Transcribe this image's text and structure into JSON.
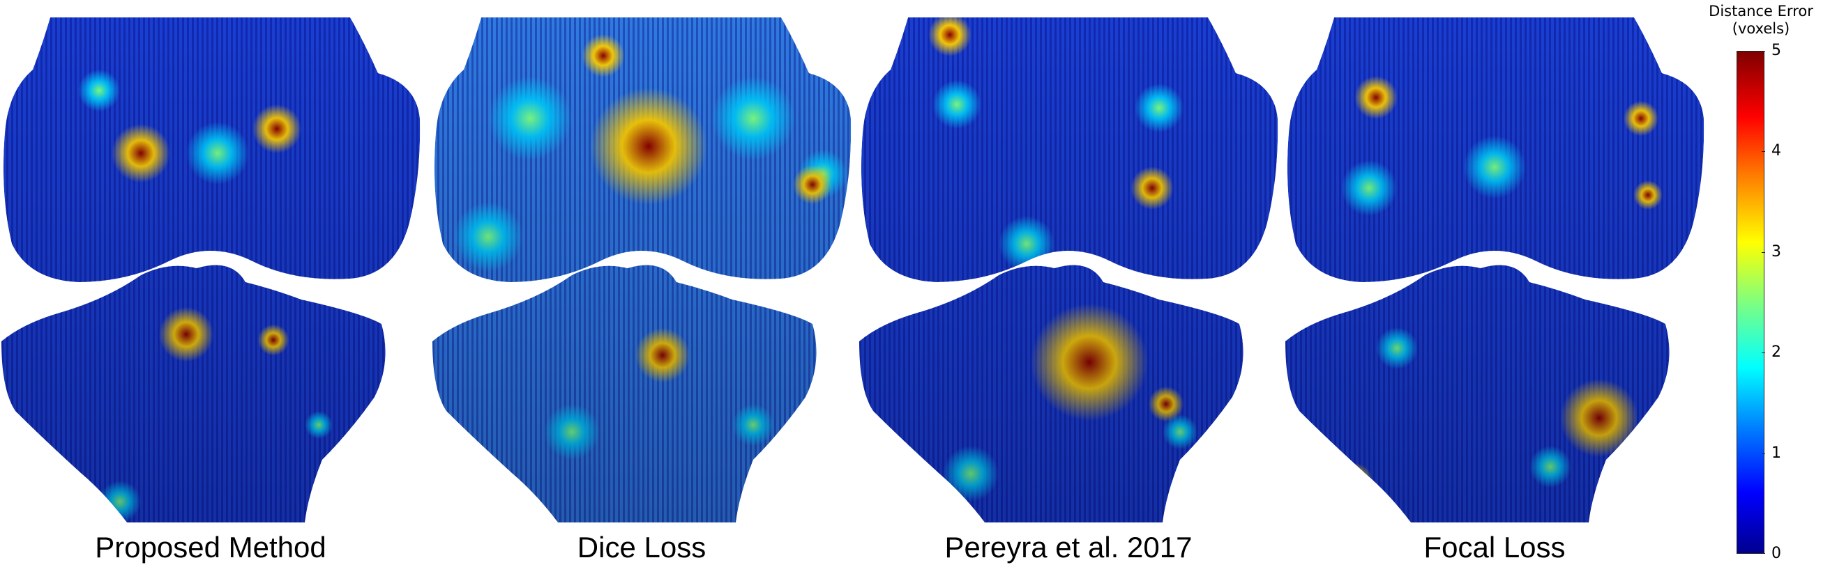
{
  "panels": [
    {
      "id": "proposed",
      "caption": "Proposed Method",
      "base_color": "#1a3fd0",
      "femur_hot": [
        [
          200,
          200,
          30
        ],
        [
          395,
          165,
          25
        ]
      ],
      "tibia_hot": [
        [
          265,
          460,
          28
        ],
        [
          390,
          468,
          16
        ]
      ],
      "femur_warm": [
        [
          310,
          200,
          45
        ],
        [
          140,
          110,
          30
        ]
      ],
      "tibia_warm": [
        [
          170,
          700,
          30
        ],
        [
          455,
          590,
          20
        ]
      ]
    },
    {
      "id": "dice",
      "caption": "Dice Loss",
      "base_color": "#2f7ae0",
      "femur_hot": [
        [
          310,
          190,
          60
        ],
        [
          545,
          245,
          20
        ],
        [
          245,
          60,
          22
        ]
      ],
      "tibia_hot": [
        [
          330,
          490,
          28
        ]
      ],
      "femur_warm": [
        [
          140,
          150,
          60
        ],
        [
          460,
          150,
          60
        ],
        [
          80,
          320,
          50
        ],
        [
          560,
          230,
          35
        ]
      ],
      "tibia_warm": [
        [
          200,
          600,
          40
        ],
        [
          460,
          590,
          30
        ]
      ]
    },
    {
      "id": "pereyra",
      "caption": "Pereyra et al. 2017",
      "base_color": "#1a3fd0",
      "femur_hot": [
        [
          130,
          30,
          22
        ],
        [
          420,
          250,
          22
        ]
      ],
      "tibia_hot": [
        [
          330,
          500,
          60
        ],
        [
          440,
          560,
          18
        ]
      ],
      "femur_warm": [
        [
          140,
          130,
          35
        ],
        [
          430,
          135,
          35
        ],
        [
          240,
          330,
          40
        ]
      ],
      "tibia_warm": [
        [
          160,
          660,
          40
        ],
        [
          460,
          600,
          25
        ]
      ]
    },
    {
      "id": "focal",
      "caption": "Focal Loss",
      "base_color": "#1a3fd0",
      "femur_hot": [
        [
          130,
          120,
          22
        ],
        [
          510,
          150,
          18
        ],
        [
          520,
          260,
          15
        ]
      ],
      "tibia_hot": [
        [
          450,
          580,
          40
        ],
        [
          100,
          670,
          18
        ]
      ],
      "femur_warm": [
        [
          300,
          220,
          45
        ],
        [
          120,
          250,
          40
        ]
      ],
      "tibia_warm": [
        [
          160,
          480,
          30
        ],
        [
          380,
          650,
          30
        ]
      ]
    }
  ],
  "colorbar": {
    "title_line1": "Distance Error",
    "title_line2": "(voxels)",
    "min": 0,
    "max": 5,
    "ticks": [
      "0",
      "1",
      "2",
      "3",
      "4",
      "5"
    ],
    "colormap": [
      "#00008f",
      "#0000ff",
      "#007fff",
      "#00ffff",
      "#7fff7f",
      "#ffff00",
      "#ff7f00",
      "#ff0000",
      "#7f0000"
    ]
  }
}
